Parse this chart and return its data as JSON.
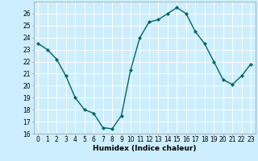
{
  "x": [
    0,
    1,
    2,
    3,
    4,
    5,
    6,
    7,
    8,
    9,
    10,
    11,
    12,
    13,
    14,
    15,
    16,
    17,
    18,
    19,
    20,
    21,
    22,
    23
  ],
  "y": [
    23.5,
    23.0,
    22.2,
    20.8,
    19.0,
    18.0,
    17.7,
    16.5,
    16.4,
    17.5,
    21.3,
    24.0,
    25.3,
    25.5,
    26.0,
    26.5,
    26.0,
    24.5,
    23.5,
    22.0,
    20.5,
    20.1,
    20.8,
    21.8
  ],
  "line_color": "#006666",
  "marker": "D",
  "marker_size": 2.0,
  "bg_color": "#cceeff",
  "grid_color": "#ffffff",
  "xlabel": "Humidex (Indice chaleur)",
  "ylim": [
    16,
    27
  ],
  "xlim": [
    -0.5,
    23.5
  ],
  "yticks": [
    16,
    17,
    18,
    19,
    20,
    21,
    22,
    23,
    24,
    25,
    26
  ],
  "xticks": [
    0,
    1,
    2,
    3,
    4,
    5,
    6,
    7,
    8,
    9,
    10,
    11,
    12,
    13,
    14,
    15,
    16,
    17,
    18,
    19,
    20,
    21,
    22,
    23
  ],
  "xtick_labels": [
    "0",
    "1",
    "2",
    "3",
    "4",
    "5",
    "6",
    "7",
    "8",
    "9",
    "10",
    "11",
    "12",
    "13",
    "14",
    "15",
    "16",
    "17",
    "18",
    "19",
    "20",
    "21",
    "22",
    "23"
  ],
  "xlabel_fontsize": 6.5,
  "tick_fontsize": 5.5,
  "linewidth": 1.0
}
